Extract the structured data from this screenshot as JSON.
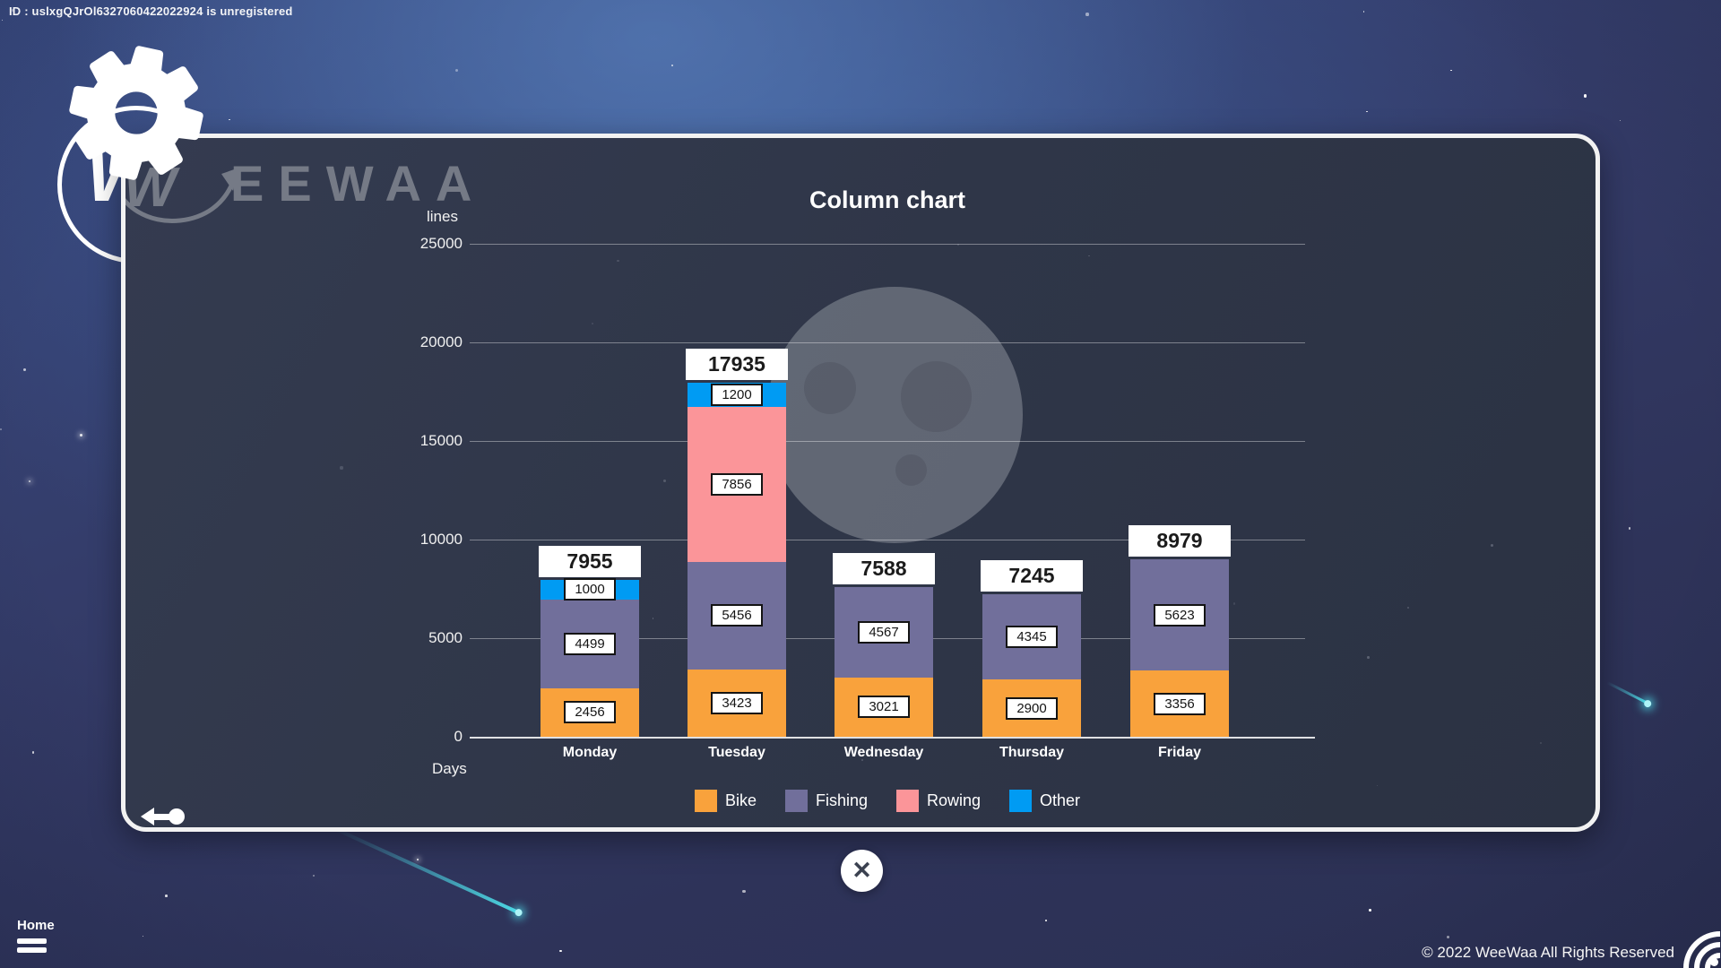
{
  "header": {
    "registration_id": "ID : uslxgQJrOl6327060422022924 is unregistered"
  },
  "brand": {
    "name": "EEWAA",
    "monogram": "W"
  },
  "chart_data": {
    "type": "bar",
    "stacked": true,
    "title": "Column chart",
    "xlabel": "Days",
    "ylabel": "lines",
    "ylim": [
      0,
      25000
    ],
    "y_ticks": [
      25000,
      20000,
      15000,
      10000,
      5000,
      0
    ],
    "categories": [
      "Monday",
      "Tuesday",
      "Wednesday",
      "Thursday",
      "Friday"
    ],
    "series": [
      {
        "name": "Bike",
        "color": "#F9A23C",
        "values": [
          2456,
          3423,
          3021,
          2900,
          3356
        ]
      },
      {
        "name": "Fishing",
        "color": "#716F9B",
        "values": [
          4499,
          5456,
          4567,
          4345,
          5623
        ]
      },
      {
        "name": "Rowing",
        "color": "#FB9599",
        "values": [
          0,
          7856,
          0,
          0,
          0
        ]
      },
      {
        "name": "Other",
        "color": "#009BF3",
        "values": [
          1000,
          1200,
          0,
          0,
          0
        ]
      }
    ],
    "totals": [
      7955,
      17935,
      7588,
      7245,
      8979
    ],
    "grid": true,
    "legend_position": "bottom"
  },
  "controls": {
    "close_glyph": "✕"
  },
  "footer": {
    "home_label": "Home",
    "copyright": "© 2022 WeeWaa All Rights Reserved"
  },
  "colors": {
    "panel_border": "#f2f2f2",
    "watermark": "#757a86",
    "shooting_star": "#4ee1ec",
    "moon": "#63666f",
    "value_text": "#141414"
  }
}
